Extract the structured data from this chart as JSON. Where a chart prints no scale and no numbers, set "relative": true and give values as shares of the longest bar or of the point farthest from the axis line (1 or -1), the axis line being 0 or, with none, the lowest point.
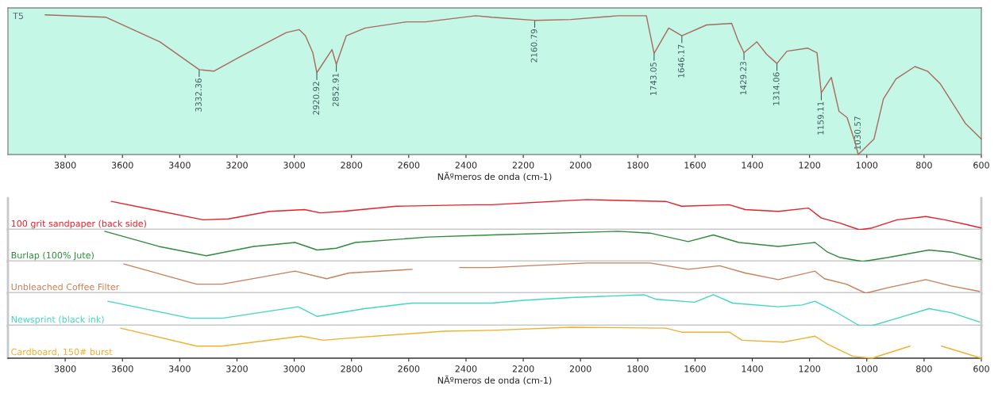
{
  "chart_data": [
    {
      "type": "line",
      "relative": true,
      "xlabel": "NÃºmeros de onda (cm-1)",
      "xlim": [
        4000,
        600
      ],
      "xticks": [
        3800,
        3600,
        3400,
        3200,
        3000,
        2800,
        2600,
        2400,
        2200,
        2000,
        1800,
        1600,
        1400,
        1200,
        1000,
        800,
        600
      ],
      "tick_labels": "x",
      "legend": false,
      "series": [
        {
          "color": "#a86a5e",
          "x": [
            3870,
            3657,
            3469,
            3332,
            3281,
            3193,
            3028,
            2983,
            2961,
            2935,
            2921,
            2868,
            2853,
            2818,
            2752,
            2608,
            2542,
            2366,
            2310,
            2160,
            2034,
            1869,
            1770,
            1743,
            1692,
            1646,
            1560,
            1472,
            1450,
            1429,
            1384,
            1350,
            1314,
            1279,
            1207,
            1174,
            1159,
            1124,
            1097,
            1069,
            1041,
            1030,
            975,
            942,
            898,
            832,
            788,
            744,
            689,
            655,
            600
          ],
          "values": [
            1.0,
            0.983,
            0.807,
            0.608,
            0.597,
            0.696,
            0.873,
            0.895,
            0.851,
            0.729,
            0.586,
            0.751,
            0.646,
            0.851,
            0.906,
            0.95,
            0.95,
            0.994,
            0.983,
            0.961,
            0.967,
            0.994,
            0.994,
            0.724,
            0.906,
            0.851,
            0.928,
            0.939,
            0.818,
            0.729,
            0.807,
            0.718,
            0.652,
            0.74,
            0.762,
            0.729,
            0.442,
            0.552,
            0.309,
            0.265,
            0.088,
            0.0,
            0.11,
            0.398,
            0.541,
            0.63,
            0.597,
            0.508,
            0.331,
            0.221,
            0.11
          ]
        }
      ],
      "annotations": [
        "T5",
        {
          "text": "3332.36",
          "x": 3332,
          "y": 0.608
        },
        {
          "text": "2920.92",
          "x": 2921,
          "y": 0.586
        },
        {
          "text": "2852.91",
          "x": 2853,
          "y": 0.646
        },
        {
          "text": "2160.79",
          "x": 2160,
          "y": 0.961
        },
        {
          "text": "1743.05",
          "x": 1743,
          "y": 0.724
        },
        {
          "text": "1646.17",
          "x": 1646,
          "y": 0.851
        },
        {
          "text": "1429.23",
          "x": 1429,
          "y": 0.729
        },
        {
          "text": "1314.06",
          "x": 1314,
          "y": 0.652
        },
        {
          "text": "1159.11",
          "x": 1159,
          "y": 0.442
        },
        {
          "text": "1030.57",
          "x": 1030,
          "y": 0.0
        }
      ]
    },
    {
      "type": "line",
      "relative": true,
      "xlim": [
        4000,
        600
      ],
      "tick_labels": false,
      "legend": false,
      "series": [
        {
          "name": "100 grit sandpaper (back side)",
          "color": "#e8202a",
          "x": [
            3639,
            3496,
            3318,
            3230,
            3086,
            2964,
            2909,
            2831,
            2643,
            2366,
            2311,
            1979,
            1702,
            1647,
            1480,
            1425,
            1309,
            1204,
            1159,
            1093,
            1026,
            982,
            894,
            794,
            728,
            650,
            600
          ],
          "values": [
            0.94,
            0.67,
            0.33,
            0.36,
            0.61,
            0.67,
            0.56,
            0.61,
            0.78,
            0.83,
            0.83,
            1.0,
            0.94,
            0.78,
            0.83,
            0.67,
            0.61,
            0.72,
            0.39,
            0.22,
            0.0,
            0.06,
            0.33,
            0.44,
            0.33,
            0.17,
            0.06
          ]
        }
      ]
    },
    {
      "type": "line",
      "relative": true,
      "xlim": [
        4000,
        600
      ],
      "tick_labels": false,
      "legend": false,
      "series": [
        {
          "name": "Burlap (100% Jute)",
          "color": "#2e8b3a",
          "x": [
            3662,
            3473,
            3307,
            3141,
            2997,
            2920,
            2853,
            2787,
            2532,
            2311,
            1868,
            1757,
            1624,
            1536,
            1447,
            1309,
            1181,
            1137,
            1093,
            1015,
            927,
            783,
            705,
            600
          ],
          "values": [
            1.0,
            0.5,
            0.19,
            0.5,
            0.63,
            0.38,
            0.44,
            0.63,
            0.81,
            0.88,
            1.0,
            0.94,
            0.66,
            0.88,
            0.63,
            0.5,
            0.63,
            0.31,
            0.13,
            0.0,
            0.13,
            0.38,
            0.31,
            0.06
          ]
        }
      ]
    },
    {
      "type": "line",
      "relative": true,
      "xlim": [
        4000,
        600
      ],
      "tick_labels": false,
      "legend": false,
      "series": [
        {
          "name": "Unbleached Coffee Filter",
          "color": "#c8805a",
          "x": [
            3595,
            3341,
            3252,
            2997,
            2887,
            2809,
            2588,
            2500,
            2422,
            2311,
            1979,
            1757,
            1624,
            1514,
            1425,
            1309,
            1181,
            1148,
            1071,
            1004,
            927,
            794,
            705,
            606
          ],
          "values": [
            0.97,
            0.3,
            0.3,
            0.73,
            0.48,
            0.67,
            0.79,
            null,
            0.85,
            0.85,
            1.0,
            1.0,
            0.79,
            0.91,
            0.67,
            0.45,
            0.73,
            0.48,
            0.3,
            0.0,
            0.18,
            0.45,
            0.24,
            0.06
          ]
        }
      ]
    },
    {
      "type": "line",
      "relative": true,
      "xlim": [
        4000,
        600
      ],
      "tick_labels": false,
      "legend": false,
      "series": [
        {
          "name": "Newsprint (black ink)",
          "color": "#40d8c0",
          "x": [
            3651,
            3363,
            3252,
            2986,
            2920,
            2754,
            2588,
            2311,
            2200,
            2034,
            1779,
            1735,
            1602,
            1536,
            1469,
            1309,
            1226,
            1181,
            1115,
            1026,
            982,
            894,
            783,
            705,
            606
          ],
          "values": [
            0.79,
            0.24,
            0.24,
            0.61,
            0.3,
            0.55,
            0.73,
            0.73,
            0.82,
            0.91,
            1.0,
            0.85,
            0.76,
            1.0,
            0.73,
            0.61,
            0.67,
            0.79,
            0.48,
            0.0,
            0.0,
            0.24,
            0.55,
            0.42,
            0.12
          ]
        }
      ]
    },
    {
      "type": "line",
      "relative": true,
      "xlabel": "NÃºmeros de onda (cm-1)",
      "xlim": [
        4000,
        600
      ],
      "xticks": [
        3800,
        3600,
        3400,
        3200,
        3000,
        2800,
        2600,
        2400,
        2200,
        2000,
        1800,
        1600,
        1400,
        1200,
        1000,
        800,
        600
      ],
      "tick_labels": "x",
      "legend": false,
      "series": [
        {
          "name": "Cardboard, 150# burst",
          "color": "#f0b030",
          "x": [
            3606,
            3341,
            3252,
            2975,
            2898,
            2809,
            2477,
            2311,
            2034,
            1702,
            1647,
            1480,
            1436,
            1292,
            1181,
            1137,
            1049,
            982,
            849,
            800,
            739,
            600
          ],
          "values": [
            0.97,
            0.39,
            0.39,
            0.71,
            0.58,
            0.65,
            0.87,
            0.9,
            1.0,
            0.97,
            0.84,
            0.84,
            0.58,
            0.52,
            0.71,
            0.45,
            0.06,
            0.0,
            0.39,
            null,
            0.39,
            0.0
          ]
        }
      ]
    }
  ]
}
